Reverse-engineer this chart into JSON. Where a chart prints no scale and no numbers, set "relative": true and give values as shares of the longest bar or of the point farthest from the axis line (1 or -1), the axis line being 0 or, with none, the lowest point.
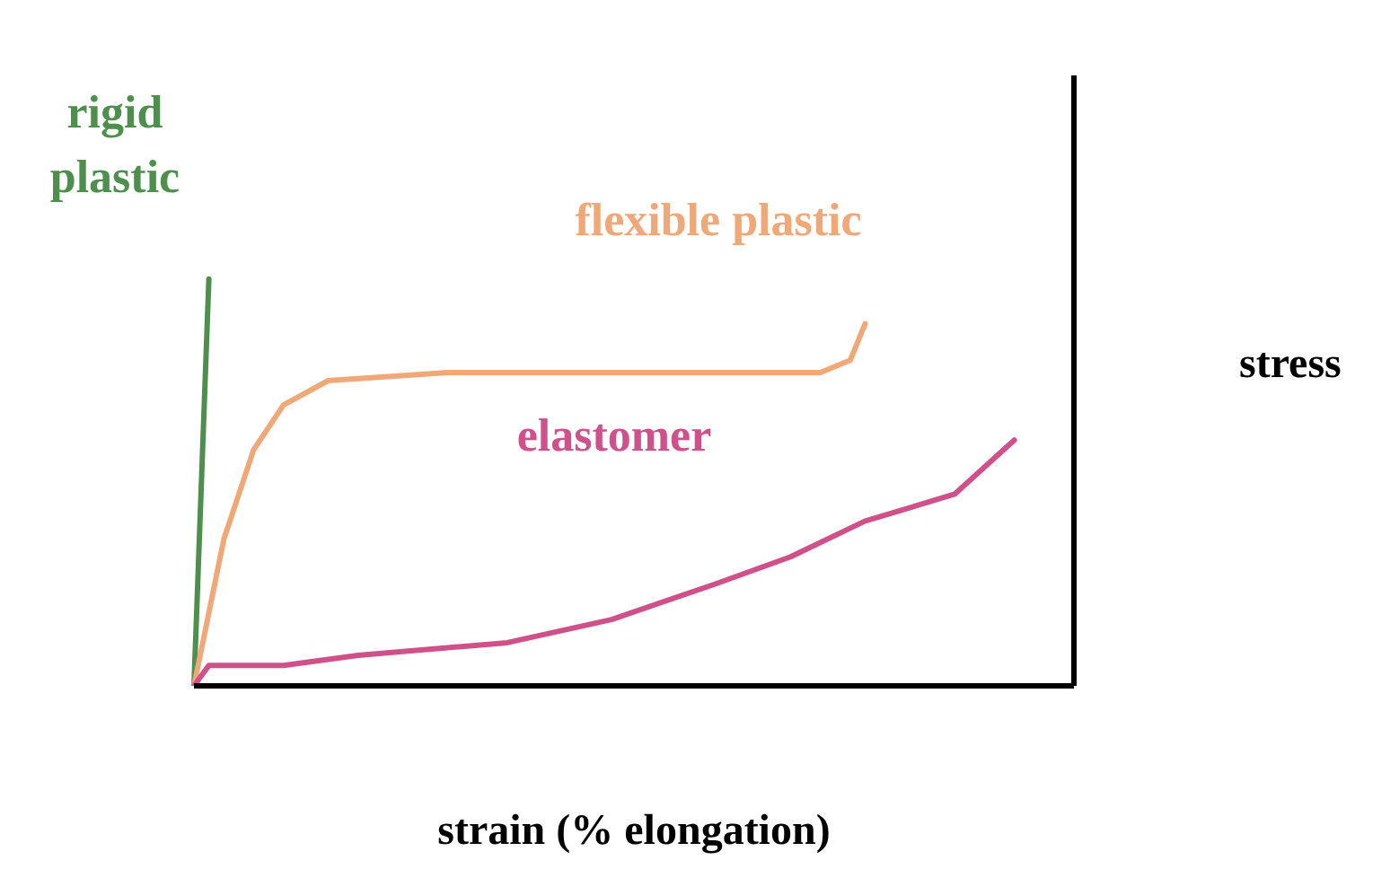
{
  "chart_data": {
    "type": "line",
    "relative": true,
    "xlabel": "strain (% elongation)",
    "ylabel": "stress",
    "legend": false,
    "categories": [
      null,
      null,
      null,
      null,
      null,
      null,
      null,
      null,
      null,
      null,
      null,
      null,
      null,
      null,
      null,
      null,
      null,
      null,
      null,
      null,
      null,
      null,
      null,
      null,
      null,
      null,
      null,
      null,
      null,
      null,
      null,
      null,
      null,
      null,
      null,
      null,
      null,
      null,
      null,
      null,
      null,
      null,
      null,
      null,
      null,
      null,
      null,
      null,
      null,
      null,
      null,
      null,
      null,
      null,
      null,
      null,
      null,
      null,
      null,
      null
    ],
    "series": [
      {
        "name": "rigid plastic",
        "color": "#4e8f4e",
        "values": [
          0,
          1,
          null,
          null,
          null,
          null,
          null,
          null,
          null,
          null,
          null,
          null,
          null,
          null,
          null,
          null,
          null,
          null,
          null,
          null,
          null,
          null,
          null,
          null,
          null,
          null,
          null,
          null,
          null,
          null,
          null,
          null,
          null,
          null,
          null,
          null,
          null,
          null,
          null,
          null,
          null,
          null,
          null,
          null,
          null,
          null,
          null,
          null,
          null,
          null,
          null,
          null,
          null,
          null,
          null,
          null,
          null,
          null,
          null,
          null
        ]
      },
      {
        "name": "flexible plastic",
        "color": "#f0a878",
        "values": [
          0,
          null,
          0.36,
          null,
          0.58,
          null,
          0.69,
          null,
          null,
          0.75,
          null,
          null,
          null,
          null,
          null,
          null,
          null,
          0.77,
          null,
          null,
          null,
          null,
          null,
          null,
          null,
          null,
          null,
          null,
          null,
          null,
          null,
          null,
          null,
          null,
          null,
          null,
          null,
          null,
          null,
          null,
          null,
          null,
          0.77,
          null,
          0.8,
          0.89,
          null,
          null,
          null,
          null,
          null,
          null,
          null,
          null,
          null,
          null,
          null,
          null,
          null,
          null
        ]
      },
      {
        "name": "elastomer",
        "color": "#d0508a",
        "values": [
          0,
          0.05,
          null,
          null,
          null,
          null,
          0.05,
          null,
          null,
          null,
          null,
          0.075,
          null,
          null,
          null,
          null,
          null,
          null,
          null,
          null,
          null,
          0.106,
          null,
          null,
          null,
          null,
          null,
          null,
          0.163,
          null,
          null,
          null,
          null,
          null,
          null,
          0.251,
          null,
          null,
          null,
          null,
          0.317,
          null,
          null,
          null,
          null,
          0.405,
          null,
          null,
          null,
          null,
          null,
          0.471,
          null,
          null,
          null,
          0.604,
          null,
          null,
          null,
          null
        ]
      }
    ]
  }
}
